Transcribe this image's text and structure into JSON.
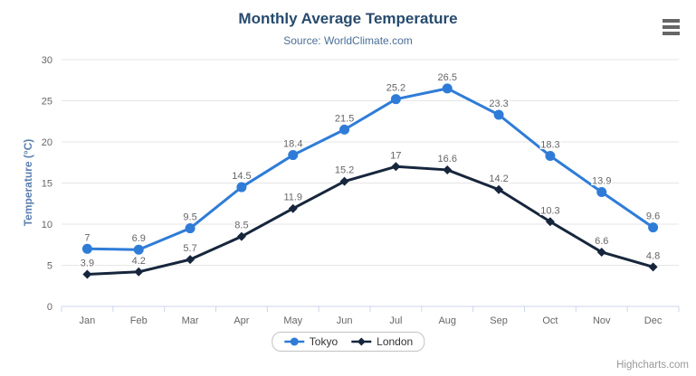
{
  "chart_data": {
    "type": "line",
    "title": "Monthly Average Temperature",
    "subtitle": "Source: WorldClimate.com",
    "xlabel": "",
    "ylabel": "Temperature (°C)",
    "categories": [
      "Jan",
      "Feb",
      "Mar",
      "Apr",
      "May",
      "Jun",
      "Jul",
      "Aug",
      "Sep",
      "Oct",
      "Nov",
      "Dec"
    ],
    "series": [
      {
        "name": "Tokyo",
        "color": "#2f7cd8",
        "marker": "circle",
        "values": [
          7,
          6.9,
          9.5,
          14.5,
          18.4,
          21.5,
          25.2,
          26.5,
          23.3,
          18.3,
          13.9,
          9.6
        ]
      },
      {
        "name": "London",
        "color": "#16263c",
        "marker": "diamond",
        "values": [
          3.9,
          4.2,
          5.7,
          8.5,
          11.9,
          15.2,
          17,
          16.6,
          14.2,
          10.3,
          6.6,
          4.8
        ]
      }
    ],
    "ylim": [
      0,
      30
    ],
    "ytick_step": 5,
    "grid": true,
    "data_labels": true,
    "legend_position": "bottom-center"
  },
  "colors": {
    "title": "#274b6d",
    "subtitle": "#4a6f96",
    "axis_title": "#5a7fae",
    "tick_label": "#666666",
    "data_label": "#666666",
    "grid": "#e6e6e6",
    "axis_line": "#ccd6eb",
    "legend_text": "#333333",
    "credits": "#999999",
    "menu_icon": "#666666"
  },
  "credits": {
    "label": "Highcharts.com"
  }
}
